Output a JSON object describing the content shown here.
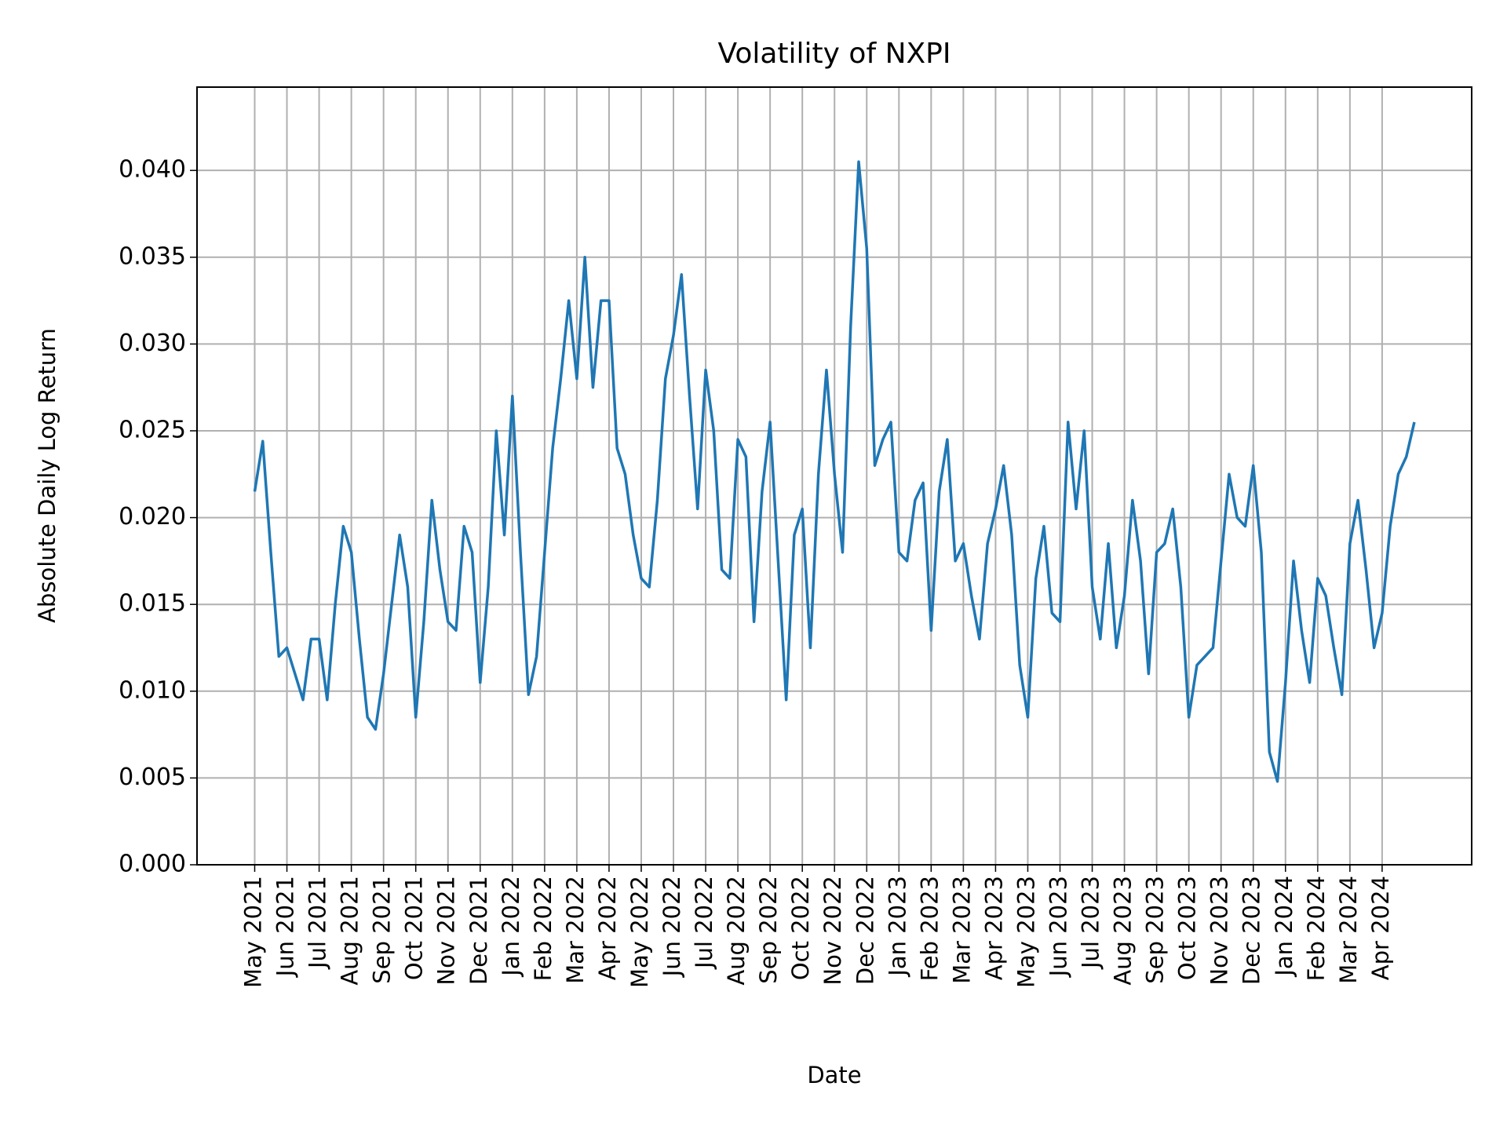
{
  "chart_data": {
    "type": "line",
    "title": "Volatility of NXPI",
    "x_label": "Date",
    "y_label": "Absolute Daily Log Return",
    "categories": [
      "May 2021",
      null,
      null,
      null,
      "Jun 2021",
      null,
      null,
      null,
      "Jul 2021",
      null,
      null,
      null,
      "Aug 2021",
      null,
      null,
      null,
      "Sep 2021",
      null,
      null,
      null,
      "Oct 2021",
      null,
      null,
      null,
      "Nov 2021",
      null,
      null,
      null,
      "Dec 2021",
      null,
      null,
      null,
      "Jan 2022",
      null,
      null,
      null,
      "Feb 2022",
      null,
      null,
      null,
      "Mar 2022",
      null,
      null,
      null,
      "Apr 2022",
      null,
      null,
      null,
      "May 2022",
      null,
      null,
      null,
      "Jun 2022",
      null,
      null,
      null,
      "Jul 2022",
      null,
      null,
      null,
      "Aug 2022",
      null,
      null,
      null,
      "Sep 2022",
      null,
      null,
      null,
      "Oct 2022",
      null,
      null,
      null,
      "Nov 2022",
      null,
      null,
      null,
      "Dec 2022",
      null,
      null,
      null,
      "Jan 2023",
      null,
      null,
      null,
      "Feb 2023",
      null,
      null,
      null,
      "Mar 2023",
      null,
      null,
      null,
      "Apr 2023",
      null,
      null,
      null,
      "May 2023",
      null,
      null,
      null,
      "Jun 2023",
      null,
      null,
      null,
      "Jul 2023",
      null,
      null,
      null,
      "Aug 2023",
      null,
      null,
      null,
      "Sep 2023",
      null,
      null,
      null,
      "Oct 2023",
      null,
      null,
      null,
      "Nov 2023",
      null,
      null,
      null,
      "Dec 2023",
      null,
      null,
      null,
      "Jan 2024",
      null,
      null,
      null,
      "Feb 2024",
      null,
      null,
      null,
      "Mar 2024",
      null,
      null,
      null,
      "Apr 2024",
      null,
      null,
      null,
      null
    ],
    "values": [
      0.0215,
      0.0244,
      0.018,
      0.012,
      0.0125,
      0.011,
      0.0095,
      0.013,
      0.013,
      0.0095,
      0.015,
      0.0195,
      0.018,
      0.013,
      0.0085,
      0.0078,
      0.011,
      0.015,
      0.019,
      0.016,
      0.0085,
      0.014,
      0.021,
      0.017,
      0.014,
      0.0135,
      0.0195,
      0.018,
      0.0105,
      0.016,
      0.025,
      0.019,
      0.027,
      0.018,
      0.0098,
      0.012,
      0.018,
      0.024,
      0.028,
      0.0325,
      0.028,
      0.035,
      0.0275,
      0.0325,
      0.0325,
      0.024,
      0.0225,
      0.019,
      0.0165,
      0.016,
      0.021,
      0.028,
      0.0305,
      0.034,
      0.027,
      0.0205,
      0.0285,
      0.025,
      0.017,
      0.0165,
      0.0245,
      0.0235,
      0.014,
      0.0215,
      0.0255,
      0.0175,
      0.0095,
      0.019,
      0.0205,
      0.0125,
      0.0225,
      0.0285,
      0.0225,
      0.018,
      0.031,
      0.0405,
      0.0355,
      0.023,
      0.0245,
      0.0255,
      0.018,
      0.0175,
      0.021,
      0.022,
      0.0135,
      0.0215,
      0.0245,
      0.0175,
      0.0185,
      0.0155,
      0.013,
      0.0185,
      0.0205,
      0.023,
      0.019,
      0.0115,
      0.0085,
      0.0165,
      0.0195,
      0.0145,
      0.014,
      0.0255,
      0.0205,
      0.025,
      0.016,
      0.013,
      0.0185,
      0.0125,
      0.0155,
      0.021,
      0.0175,
      0.011,
      0.018,
      0.0185,
      0.0205,
      0.016,
      0.0085,
      0.0115,
      0.012,
      0.0125,
      0.0175,
      0.0225,
      0.02,
      0.0195,
      0.023,
      0.018,
      0.0065,
      0.0048,
      0.0105,
      0.0175,
      0.0135,
      0.0105,
      0.0165,
      0.0155,
      0.0125,
      0.0098,
      0.0185,
      0.021,
      0.017,
      0.0125,
      0.0145,
      0.0195,
      0.0225,
      0.0235,
      0.0255
    ],
    "color": "#1f77b4",
    "ylim": [
      0,
      0.0448
    ],
    "yticks": [
      {
        "value": 0,
        "label": "0.000"
      },
      {
        "value": 0.005,
        "label": "0.005"
      },
      {
        "value": 0.01,
        "label": "0.010"
      },
      {
        "value": 0.015,
        "label": "0.015"
      },
      {
        "value": 0.02,
        "label": "0.020"
      },
      {
        "value": 0.025,
        "label": "0.025"
      },
      {
        "value": 0.03,
        "label": "0.030"
      },
      {
        "value": 0.035,
        "label": "0.035"
      },
      {
        "value": 0.04,
        "label": "0.040"
      }
    ],
    "grid": true
  }
}
